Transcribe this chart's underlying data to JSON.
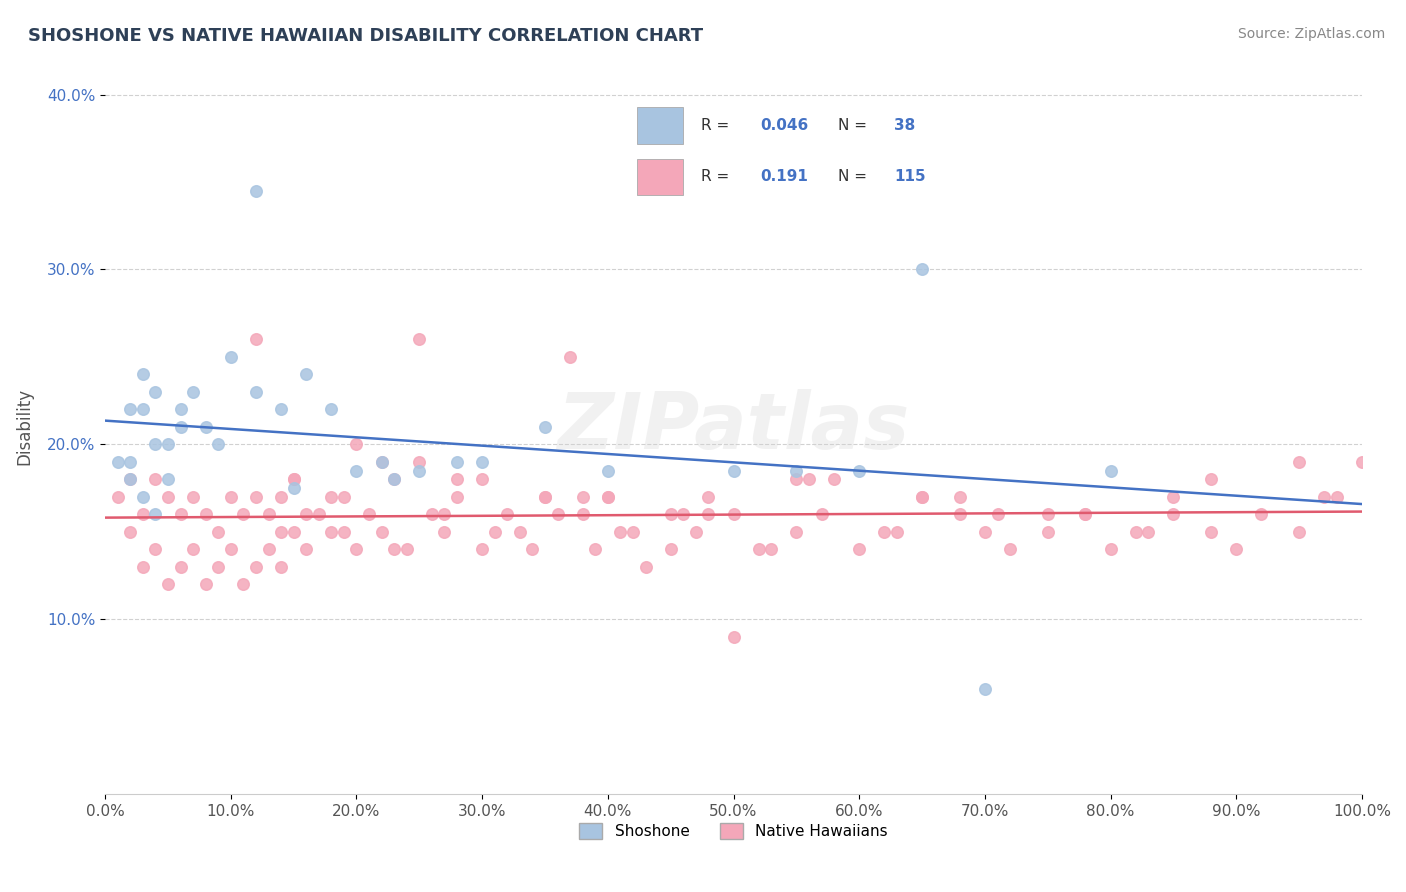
{
  "title": "SHOSHONE VS NATIVE HAWAIIAN DISABILITY CORRELATION CHART",
  "source": "Source: ZipAtlas.com",
  "ylabel": "Disability",
  "xlim": [
    0.0,
    1.0
  ],
  "ylim": [
    0.0,
    0.42
  ],
  "xticks": [
    0.0,
    0.1,
    0.2,
    0.3,
    0.4,
    0.5,
    0.6,
    0.7,
    0.8,
    0.9,
    1.0
  ],
  "xtick_labels": [
    "0.0%",
    "10.0%",
    "20.0%",
    "30.0%",
    "40.0%",
    "50.0%",
    "60.0%",
    "70.0%",
    "80.0%",
    "90.0%",
    "100.0%"
  ],
  "yticks": [
    0.1,
    0.2,
    0.3,
    0.4
  ],
  "ytick_labels": [
    "10.0%",
    "20.0%",
    "30.0%",
    "40.0%"
  ],
  "shoshone_color": "#a8c4e0",
  "native_hawaiian_color": "#f4a7b9",
  "shoshone_line_color": "#4472c4",
  "native_hawaiian_line_color": "#e05a6e",
  "R_shoshone": 0.046,
  "N_shoshone": 38,
  "R_native_hawaiian": 0.191,
  "N_native_hawaiian": 115,
  "background_color": "#ffffff",
  "grid_color": "#cccccc",
  "title_color": "#2e4057",
  "watermark_text": "ZIPatlas",
  "shoshone_scatter_x": [
    0.02,
    0.03,
    0.04,
    0.05,
    0.06,
    0.04,
    0.02,
    0.03,
    0.05,
    0.01,
    0.02,
    0.03,
    0.04,
    0.06,
    0.07,
    0.08,
    0.09,
    0.1,
    0.12,
    0.14,
    0.16,
    0.18,
    0.2,
    0.22,
    0.23,
    0.25,
    0.28,
    0.3,
    0.35,
    0.4,
    0.5,
    0.55,
    0.6,
    0.65,
    0.7,
    0.8,
    0.12,
    0.15
  ],
  "shoshone_scatter_y": [
    0.19,
    0.17,
    0.2,
    0.18,
    0.21,
    0.16,
    0.22,
    0.24,
    0.2,
    0.19,
    0.18,
    0.22,
    0.23,
    0.22,
    0.23,
    0.21,
    0.2,
    0.25,
    0.23,
    0.22,
    0.24,
    0.22,
    0.185,
    0.19,
    0.18,
    0.185,
    0.19,
    0.19,
    0.21,
    0.185,
    0.185,
    0.185,
    0.185,
    0.3,
    0.06,
    0.185,
    0.345,
    0.175
  ],
  "native_hawaiian_scatter_x": [
    0.01,
    0.02,
    0.02,
    0.03,
    0.03,
    0.04,
    0.04,
    0.05,
    0.05,
    0.06,
    0.06,
    0.07,
    0.07,
    0.08,
    0.08,
    0.09,
    0.09,
    0.1,
    0.1,
    0.11,
    0.11,
    0.12,
    0.12,
    0.13,
    0.13,
    0.14,
    0.14,
    0.15,
    0.15,
    0.16,
    0.17,
    0.18,
    0.19,
    0.2,
    0.21,
    0.22,
    0.23,
    0.24,
    0.25,
    0.26,
    0.27,
    0.28,
    0.3,
    0.32,
    0.33,
    0.35,
    0.37,
    0.38,
    0.4,
    0.42,
    0.45,
    0.46,
    0.48,
    0.5,
    0.52,
    0.55,
    0.57,
    0.6,
    0.62,
    0.65,
    0.68,
    0.7,
    0.72,
    0.75,
    0.78,
    0.8,
    0.82,
    0.85,
    0.88,
    0.9,
    0.92,
    0.95,
    0.97,
    1.0,
    0.25,
    0.3,
    0.4,
    0.5,
    0.22,
    0.15,
    0.18,
    0.35,
    0.45,
    0.55,
    0.65,
    0.75,
    0.85,
    0.95,
    0.2,
    0.28,
    0.38,
    0.48,
    0.58,
    0.68,
    0.78,
    0.88,
    0.98,
    0.12,
    0.14,
    0.16,
    0.19,
    0.23,
    0.27,
    0.31,
    0.34,
    0.36,
    0.39,
    0.41,
    0.43,
    0.47,
    0.53,
    0.56,
    0.63,
    0.71,
    0.83
  ],
  "native_hawaiian_scatter_y": [
    0.17,
    0.15,
    0.18,
    0.13,
    0.16,
    0.14,
    0.18,
    0.12,
    0.17,
    0.13,
    0.16,
    0.14,
    0.17,
    0.12,
    0.16,
    0.13,
    0.15,
    0.14,
    0.17,
    0.12,
    0.16,
    0.13,
    0.17,
    0.14,
    0.16,
    0.13,
    0.17,
    0.15,
    0.18,
    0.14,
    0.16,
    0.15,
    0.17,
    0.14,
    0.16,
    0.15,
    0.18,
    0.14,
    0.26,
    0.16,
    0.15,
    0.17,
    0.14,
    0.16,
    0.15,
    0.17,
    0.25,
    0.16,
    0.17,
    0.15,
    0.14,
    0.16,
    0.17,
    0.09,
    0.14,
    0.15,
    0.16,
    0.14,
    0.15,
    0.17,
    0.16,
    0.15,
    0.14,
    0.15,
    0.16,
    0.14,
    0.15,
    0.16,
    0.15,
    0.14,
    0.16,
    0.15,
    0.17,
    0.19,
    0.19,
    0.18,
    0.17,
    0.16,
    0.19,
    0.18,
    0.17,
    0.17,
    0.16,
    0.18,
    0.17,
    0.16,
    0.17,
    0.19,
    0.2,
    0.18,
    0.17,
    0.16,
    0.18,
    0.17,
    0.16,
    0.18,
    0.17,
    0.26,
    0.15,
    0.16,
    0.15,
    0.14,
    0.16,
    0.15,
    0.14,
    0.16,
    0.14,
    0.15,
    0.13,
    0.15,
    0.14,
    0.18,
    0.15,
    0.16,
    0.15
  ]
}
